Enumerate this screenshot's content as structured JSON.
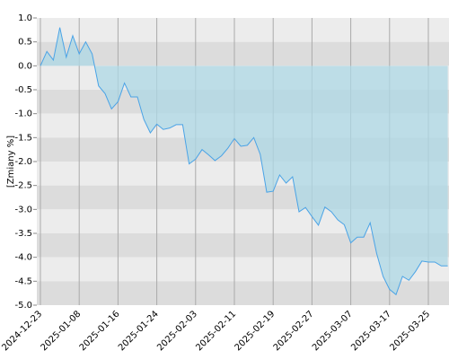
{
  "chart_data": {
    "type": "area",
    "y_label": "[Zmiany %]",
    "categories": [
      "2024-12-23",
      null,
      null,
      null,
      null,
      null,
      "2025-01-08",
      null,
      null,
      null,
      null,
      null,
      "2025-01-16",
      null,
      null,
      null,
      null,
      null,
      "2025-01-24",
      null,
      null,
      null,
      null,
      null,
      "2025-02-03",
      null,
      null,
      null,
      null,
      null,
      "2025-02-11",
      null,
      null,
      null,
      null,
      null,
      "2025-02-19",
      null,
      null,
      null,
      null,
      null,
      "2025-02-27",
      null,
      null,
      null,
      null,
      null,
      "2025-03-07",
      null,
      null,
      null,
      null,
      null,
      "2025-03-17",
      null,
      null,
      null,
      null,
      null,
      "2025-03-25",
      null,
      null,
      null
    ],
    "values": [
      0,
      0.3,
      0.12,
      0.8,
      0.18,
      0.63,
      0.25,
      0.5,
      0.25,
      -0.42,
      -0.58,
      -0.9,
      -0.75,
      -0.36,
      -0.65,
      -0.65,
      -1.12,
      -1.4,
      -1.22,
      -1.33,
      -1.3,
      -1.23,
      -1.23,
      -2.05,
      -1.95,
      -1.75,
      -1.86,
      -1.98,
      -1.88,
      -1.72,
      -1.52,
      -1.68,
      -1.66,
      -1.5,
      -1.85,
      -2.64,
      -2.62,
      -2.28,
      -2.45,
      -2.32,
      -3.05,
      -2.96,
      -3.15,
      -3.33,
      -2.95,
      -3.05,
      -3.22,
      -3.32,
      -3.7,
      -3.58,
      -3.58,
      -3.28,
      -3.92,
      -4.4,
      -4.67,
      -4.78,
      -4.4,
      -4.48,
      -4.3,
      -4.08,
      -4.1,
      -4.1,
      -4.18,
      -4.18
    ],
    "color": "#4aa3e6",
    "fill": "#add8e6",
    "ylim": [
      -5,
      1
    ],
    "yticks": [
      {
        "value": 1,
        "label": "1.0"
      },
      0.5,
      {
        "value": 0,
        "label": "0.0"
      },
      -0.5,
      {
        "value": -1,
        "label": "-1.0"
      },
      -1.5,
      {
        "value": -2,
        "label": "-2.0"
      },
      -2.5,
      {
        "value": -3,
        "label": "-3.0"
      },
      -3.5,
      {
        "value": -4,
        "label": "-4.0"
      },
      -4.5,
      {
        "value": -5,
        "label": "-5.0"
      }
    ],
    "grid": true
  }
}
